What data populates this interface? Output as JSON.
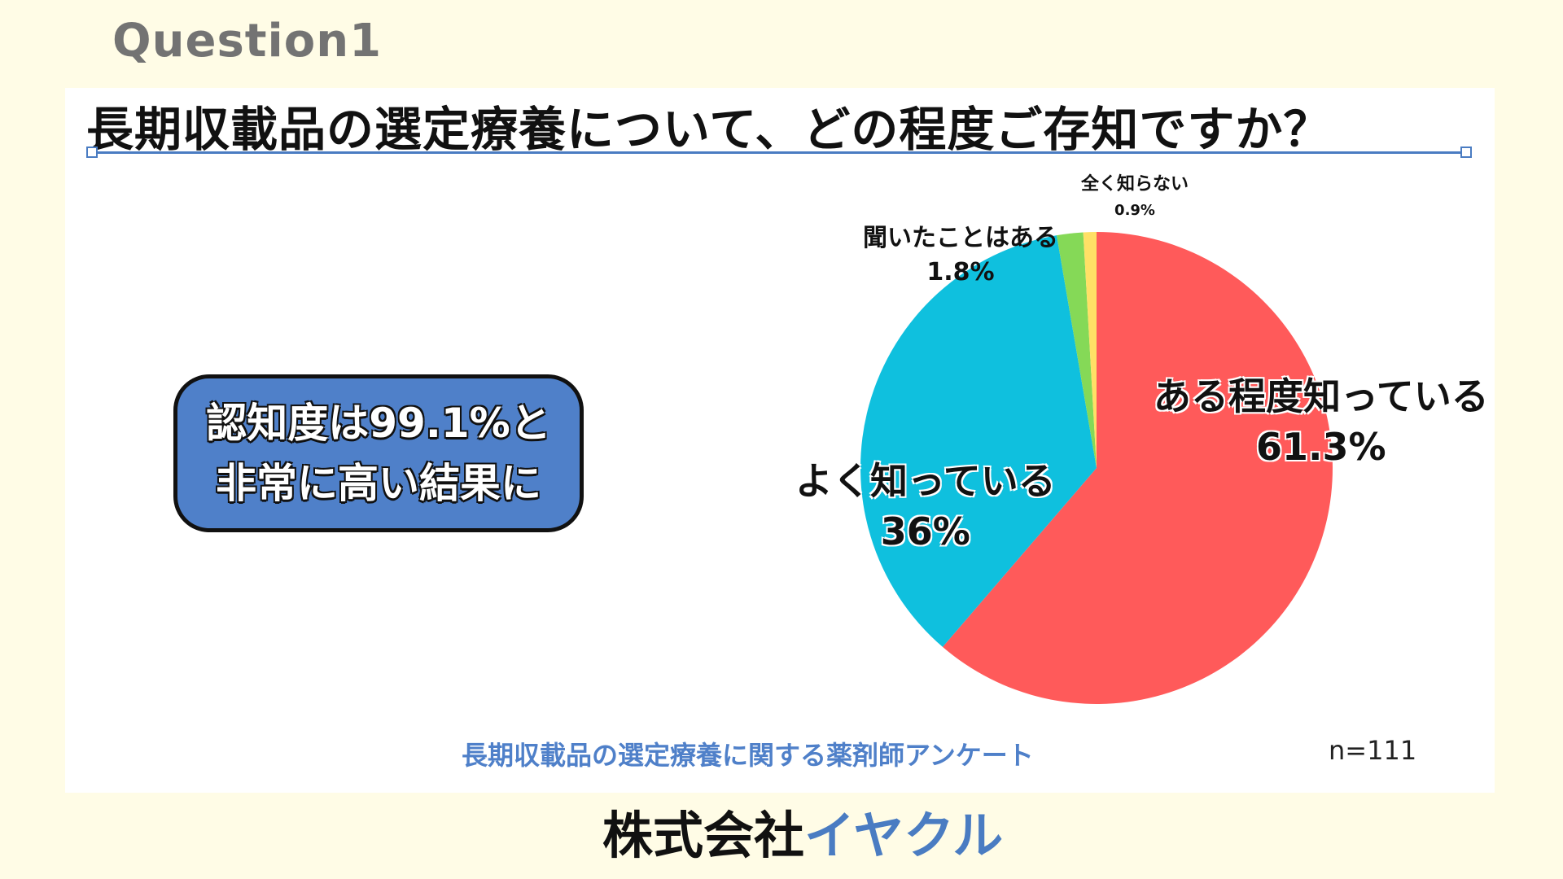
{
  "header": {
    "question_label": "Question1",
    "title": "長期収載品の選定療養について、どの程度ご存知ですか？"
  },
  "callout": {
    "line1": "認知度は99.1%と",
    "line2": "非常に高い結果に"
  },
  "chart_data": {
    "type": "pie",
    "categories": [
      "ある程度知っている",
      "よく知っている",
      "聞いたことはある",
      "全く知らない"
    ],
    "values": [
      61.3,
      36,
      1.8,
      0.9
    ],
    "value_labels": [
      "61.3%",
      "36%",
      "1.8%",
      "0.9%"
    ],
    "colors": [
      "#ff5a5a",
      "#0fc0de",
      "#85d957",
      "#ffe066"
    ],
    "start": "12 o'clock, clockwise"
  },
  "footer": {
    "source": "長期収載品の選定療養に関する薬剤師アンケート",
    "sample_size": "n=111"
  },
  "brand": {
    "prefix": "株式会社",
    "name": "イヤクル"
  }
}
